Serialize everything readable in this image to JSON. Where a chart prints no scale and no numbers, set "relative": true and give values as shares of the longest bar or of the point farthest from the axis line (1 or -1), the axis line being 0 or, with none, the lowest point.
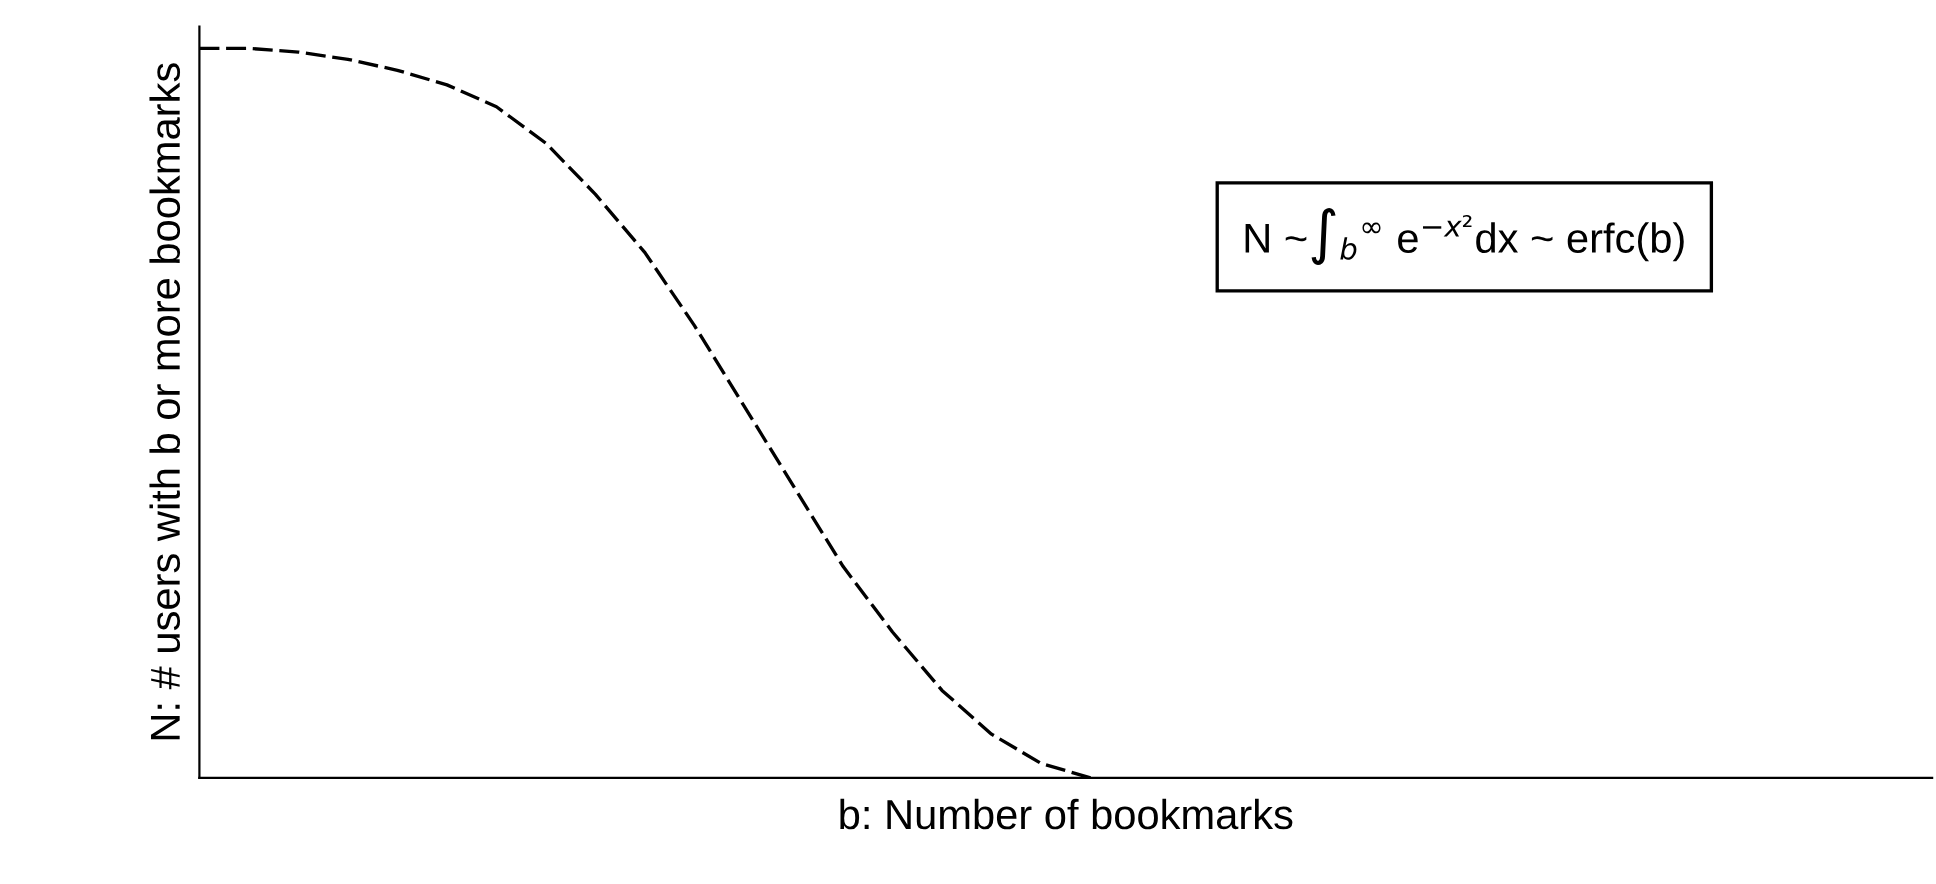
{
  "chart_data": {
    "type": "line",
    "relative": true,
    "xlabel": "b: Number of bookmarks",
    "ylabel": "N: # users with b or more bookmarks",
    "categories": [
      null,
      null,
      null,
      null,
      null,
      null,
      null,
      null,
      null,
      null,
      null,
      null,
      null,
      null,
      null,
      null,
      null,
      null,
      null,
      null,
      null,
      null,
      null,
      null,
      null,
      null,
      null,
      null,
      null,
      null,
      null,
      null,
      null,
      null,
      null,
      null
    ],
    "series": [
      {
        "color": "#000000",
        "values": [
          1.0,
          1.0,
          0.995,
          0.985,
          0.97,
          0.95,
          0.92,
          0.87,
          0.8,
          0.72,
          0.62,
          0.51,
          0.4,
          0.29,
          0.2,
          0.12,
          0.06,
          0.02,
          0.0,
          null,
          null,
          null,
          null,
          null,
          null,
          null,
          null,
          null,
          null,
          null,
          null,
          null,
          null,
          null,
          null,
          null
        ]
      }
    ],
    "line_style": "dashed",
    "marker": "none",
    "grid": false,
    "legend": false,
    "annotations": [
      "N ~∫$_{b}$$^{∞}$ e$^{−x²}$dx ~ erfc(b)"
    ]
  }
}
